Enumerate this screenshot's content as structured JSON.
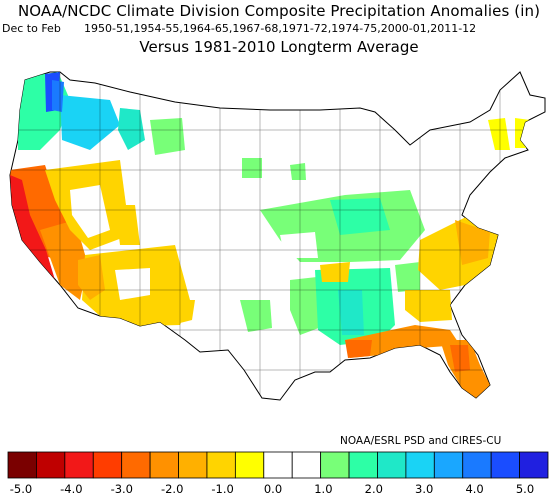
{
  "title": "NOAA/NCDC Climate Division Composite Precipitation Anomalies (in)",
  "season": "Dec to Feb",
  "years": "1950-51,1954-55,1964-65,1967-68,1971-72,1974-75,2000-01,2011-12",
  "subtitle": "Versus 1981-2010 Longterm Average",
  "credit": "NOAA/ESRL PSD and CIRES-CU",
  "colorbar": {
    "colors": [
      "#7a0000",
      "#bf0000",
      "#f21818",
      "#ff3d00",
      "#ff6a00",
      "#ff9100",
      "#ffb000",
      "#ffd400",
      "#ffff00",
      "#ffffff",
      "#ffffff",
      "#78ff78",
      "#2dffa6",
      "#1fe8c8",
      "#1ad3f5",
      "#1aa7ff",
      "#1a7aff",
      "#1a4dff",
      "#2020e0"
    ],
    "tick_labels": [
      "-5.0",
      "-4.0",
      "-3.0",
      "-2.0",
      "-1.0",
      "0.0",
      "1.0",
      "2.0",
      "3.0",
      "4.0",
      "5.0"
    ]
  }
}
